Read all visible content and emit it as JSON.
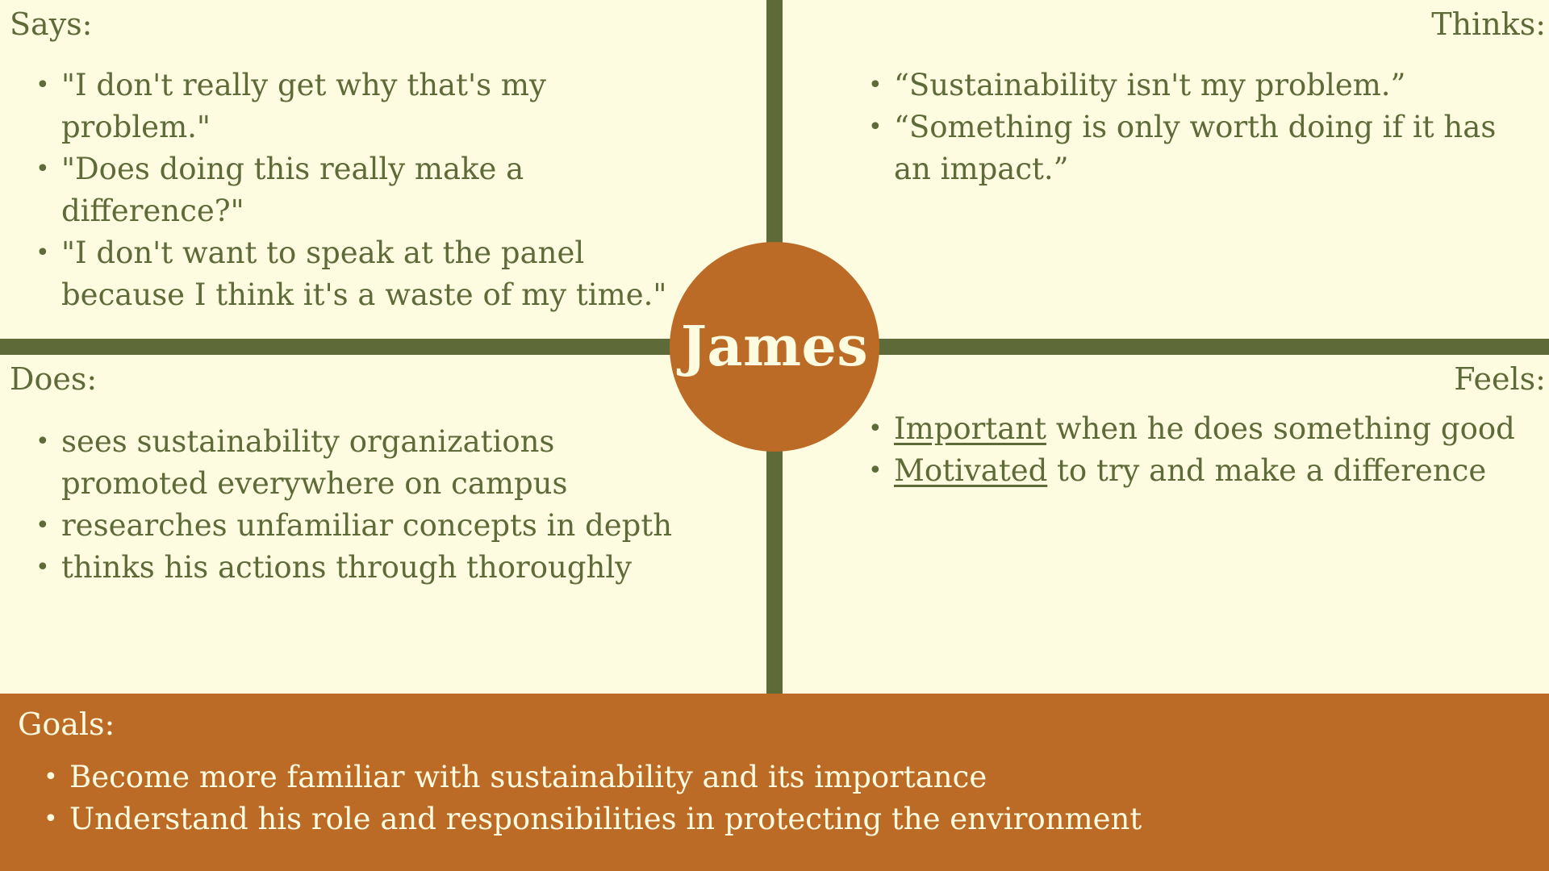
{
  "persona": {
    "name": "James"
  },
  "quadrants": {
    "says": {
      "title": "Says:",
      "items": [
        "\"I don't really get why that's my problem.\"",
        "\"Does doing this really make a difference?\"",
        "\"I don't want to speak at the panel because I think it's a waste of my time.\""
      ]
    },
    "thinks": {
      "title": "Thinks:",
      "items": [
        "“Sustainability isn't my problem.”",
        "“Something is only worth doing if it has an impact.”"
      ]
    },
    "does": {
      "title": "Does:",
      "items": [
        "sees sustainability organizations promoted everywhere on campus",
        "researches unfamiliar concepts in depth",
        "thinks his actions through thoroughly"
      ]
    },
    "feels": {
      "title": "Feels:",
      "items": [
        {
          "emphasis": "Important",
          "rest": " when he does something good"
        },
        {
          "emphasis": "Motivated",
          "rest": " to try and make a difference"
        }
      ]
    }
  },
  "goals": {
    "title": "Goals:",
    "items": [
      "Become more familiar with sustainability and its importance",
      "Understand his role and responsibilities in protecting the environment"
    ]
  },
  "colors": {
    "background": "#fdfbe0",
    "olive": "#5e6a38",
    "accent": "#bc6b26"
  }
}
